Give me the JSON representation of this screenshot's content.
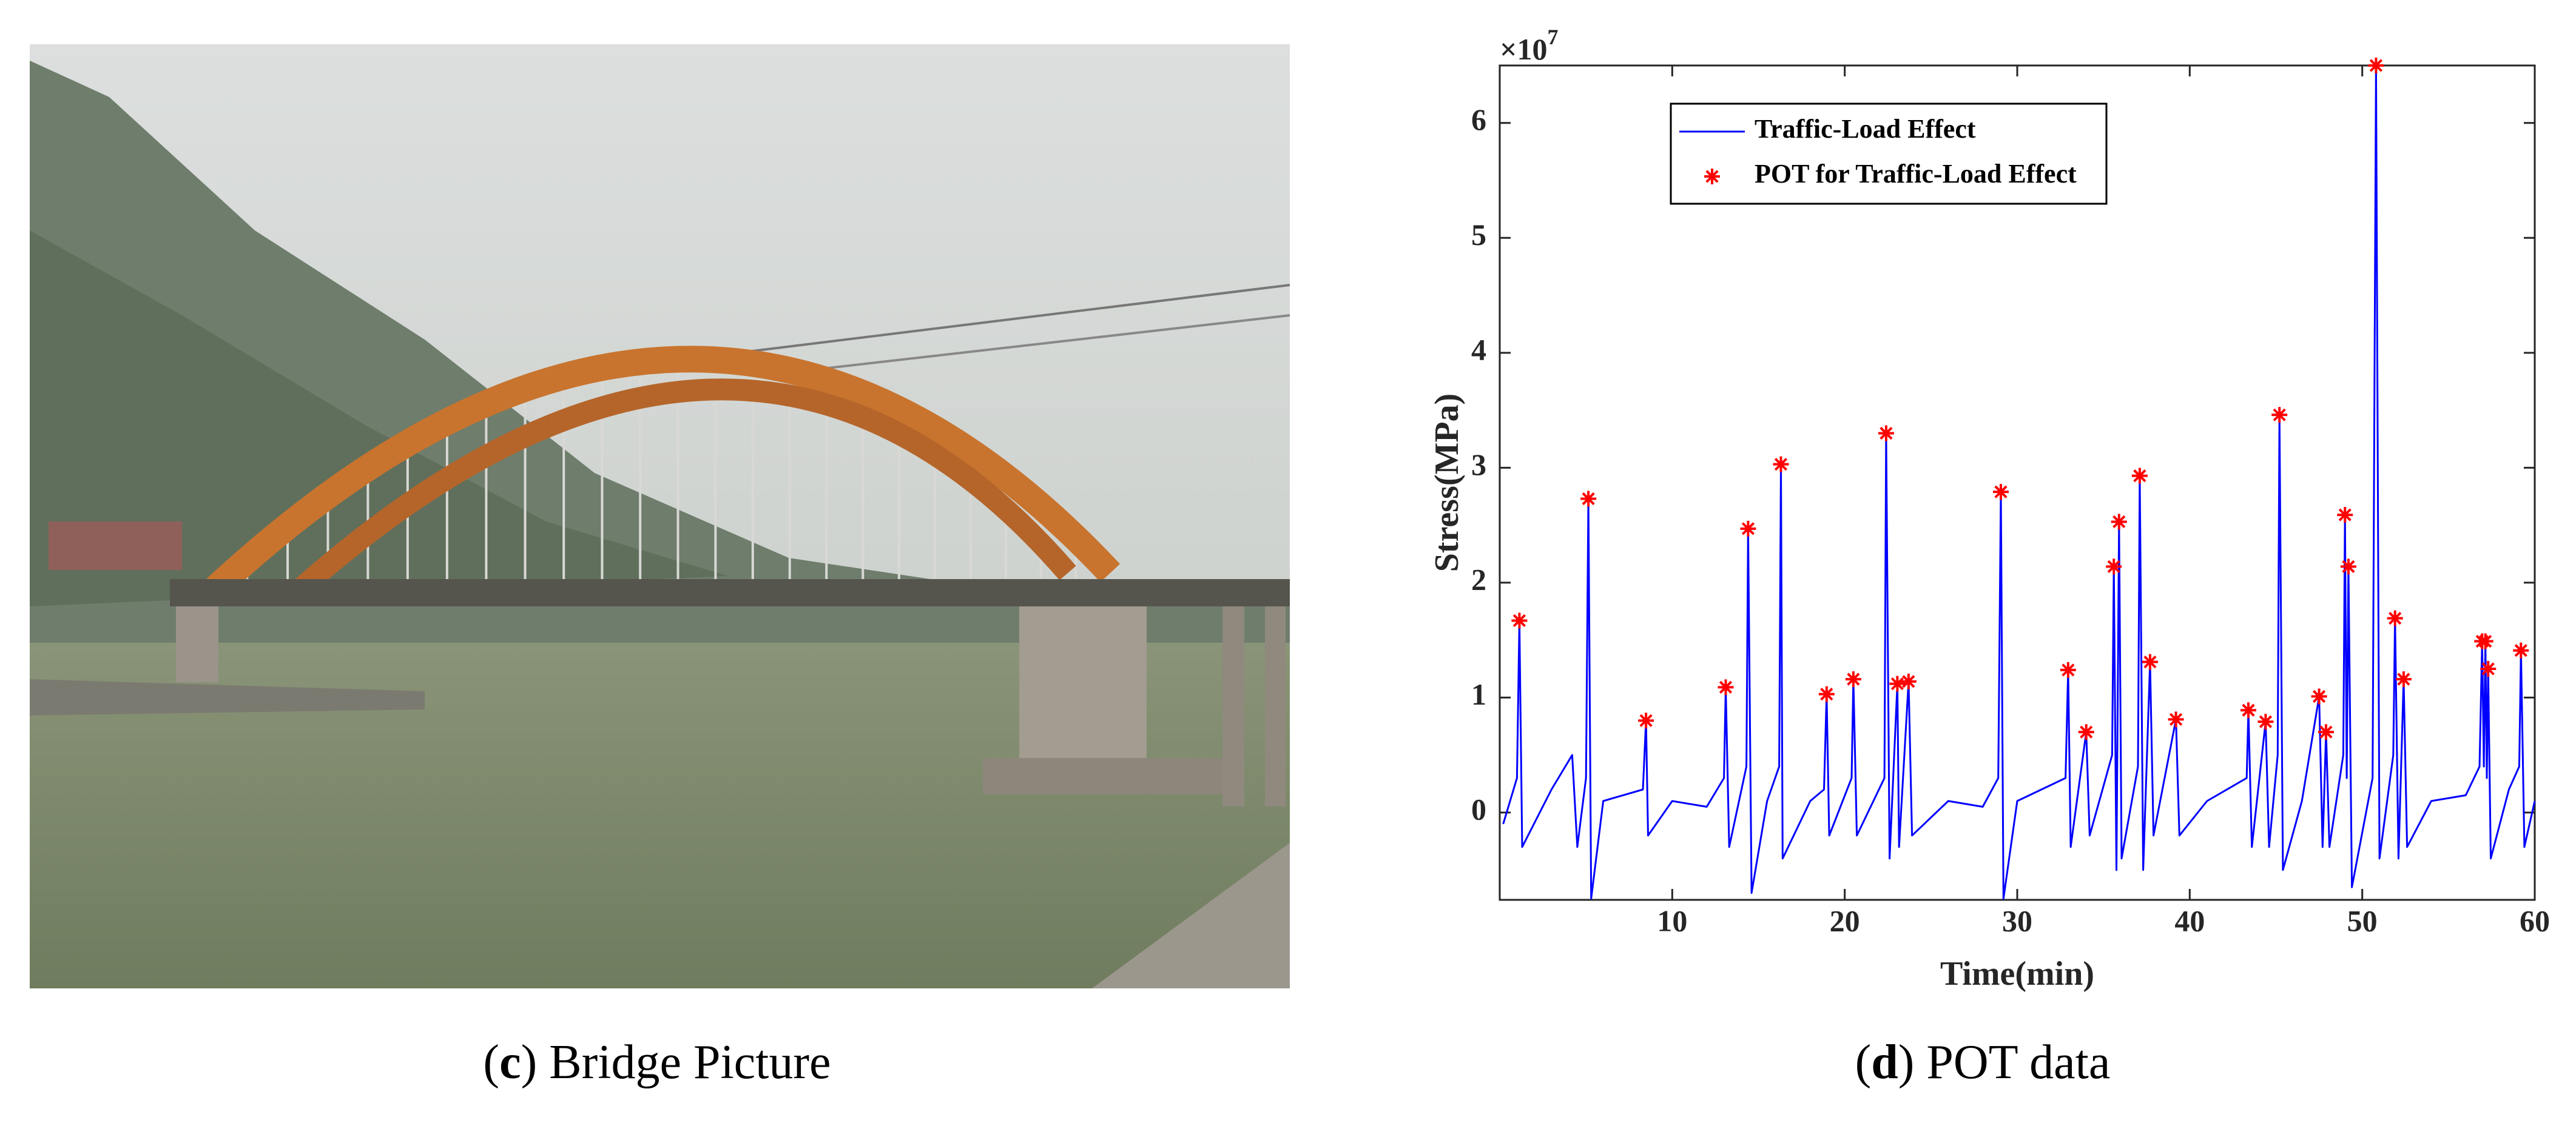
{
  "caption_c": {
    "open": "(",
    "label": "c",
    "text": ") Bridge Picture"
  },
  "caption_d": {
    "open": "(",
    "label": "d",
    "text": ") POT data"
  },
  "chart_data": {
    "type": "line",
    "xlabel": "Time(min)",
    "ylabel": "Stress(MPa)",
    "y_multiplier": {
      "base": "×10",
      "exponent": "7"
    },
    "xlim": [
      0,
      60
    ],
    "ylim": [
      -0.76,
      6.5
    ],
    "xticks": [
      10,
      20,
      30,
      40,
      50,
      60
    ],
    "yticks": [
      0,
      1,
      2,
      3,
      4,
      5,
      6
    ],
    "legend": "upper left",
    "series": [
      {
        "name": "Traffic-Load Effect",
        "color": "#0000ff",
        "marker": "line",
        "x": [
          0.2,
          1.0,
          1.14,
          1.3,
          3,
          4.2,
          4.5,
          5.0,
          5.14,
          5.3,
          6,
          8.3,
          8.48,
          8.6,
          10,
          12,
          13.0,
          13.1,
          13.3,
          14.3,
          14.4,
          14.6,
          15.5,
          16.2,
          16.3,
          16.4,
          18,
          18.8,
          18.95,
          19.1,
          20.4,
          20.5,
          20.7,
          22.3,
          22.4,
          22.6,
          23.05,
          23.15,
          23.7,
          23.9,
          26,
          28,
          28.9,
          29.05,
          29.2,
          30,
          32.8,
          32.95,
          33.1,
          34.0,
          34.2,
          35.5,
          35.6,
          35.75,
          35.9,
          36.05,
          37.0,
          37.1,
          37.3,
          37.7,
          37.9,
          39.2,
          39.4,
          41,
          43.3,
          43.4,
          43.6,
          44.4,
          44.6,
          45.1,
          45.2,
          45.4,
          46.5,
          47.5,
          47.7,
          47.9,
          48.1,
          48.9,
          49.0,
          49.1,
          49.2,
          49.4,
          50.6,
          50.8,
          51.0,
          51.8,
          51.9,
          52.1,
          52.4,
          52.6,
          54,
          56,
          56.8,
          56.95,
          57.05,
          57.14,
          57.22,
          57.3,
          57.45,
          58.5,
          59.1,
          59.2,
          59.4,
          60
        ],
        "values": [
          -0.1,
          0.3,
          1.67,
          -0.3,
          0.2,
          0.5,
          -0.3,
          0.3,
          2.73,
          -0.75,
          0.1,
          0.2,
          0.8,
          -0.2,
          0.1,
          0.05,
          0.3,
          1.09,
          -0.3,
          0.4,
          2.47,
          -0.7,
          0.1,
          0.4,
          3.03,
          -0.4,
          0.1,
          0.2,
          1.03,
          -0.2,
          0.3,
          1.16,
          -0.2,
          0.3,
          3.3,
          -0.4,
          1.12,
          -0.3,
          1.14,
          -0.2,
          0.1,
          0.05,
          0.3,
          2.79,
          -0.75,
          0.1,
          0.3,
          1.24,
          -0.3,
          0.7,
          -0.2,
          0.5,
          2.14,
          -0.5,
          2.53,
          -0.4,
          0.4,
          2.93,
          -0.5,
          1.31,
          -0.2,
          0.81,
          -0.2,
          0.1,
          0.3,
          0.89,
          -0.3,
          0.79,
          -0.3,
          0.5,
          3.46,
          -0.5,
          0.1,
          1.01,
          -0.3,
          0.7,
          -0.3,
          0.5,
          2.59,
          0.3,
          2.14,
          -0.65,
          0.3,
          6.5,
          -0.4,
          0.5,
          1.69,
          -0.4,
          1.16,
          -0.3,
          0.1,
          0.15,
          0.4,
          1.49,
          0.4,
          1.49,
          0.3,
          1.25,
          -0.4,
          0.2,
          0.4,
          1.41,
          -0.3,
          0.1
        ]
      },
      {
        "name": "POT for Traffic-Load Effect",
        "color": "#ff0000",
        "marker": "asterisk",
        "x": [
          1.14,
          5.14,
          8.48,
          13.1,
          14.4,
          16.3,
          18.95,
          20.5,
          22.4,
          23.05,
          23.7,
          29.05,
          32.95,
          34.0,
          35.6,
          35.9,
          37.1,
          37.7,
          39.2,
          43.4,
          44.4,
          45.2,
          47.5,
          47.9,
          49.0,
          49.2,
          50.8,
          51.9,
          52.4,
          56.95,
          57.14,
          57.3,
          59.2
        ],
        "values": [
          1.67,
          2.73,
          0.8,
          1.09,
          2.47,
          3.03,
          1.03,
          1.16,
          3.3,
          1.12,
          1.14,
          2.79,
          1.24,
          0.7,
          2.14,
          2.53,
          2.93,
          1.31,
          0.81,
          0.89,
          0.79,
          3.46,
          1.01,
          0.7,
          2.59,
          2.14,
          6.5,
          1.69,
          1.16,
          1.49,
          1.49,
          1.25,
          1.41
        ]
      }
    ]
  }
}
